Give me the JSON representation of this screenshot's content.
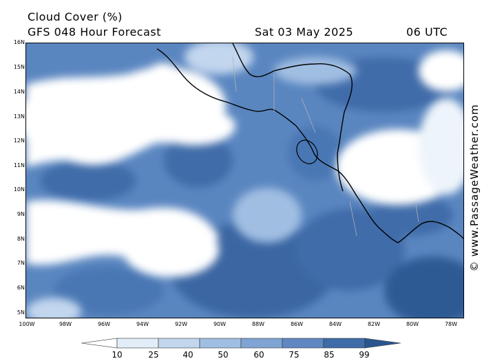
{
  "header": {
    "product": "Cloud Cover (%)",
    "forecast": "GFS 048 Hour Forecast",
    "date": "Sat 03 May 2025",
    "time": "06 UTC"
  },
  "credit": "© www.PassageWeather.com",
  "axes": {
    "lat_labels": [
      "16N",
      "15N",
      "14N",
      "13N",
      "12N",
      "11N",
      "10N",
      "9N",
      "8N",
      "7N",
      "6N",
      "5N"
    ],
    "lon_labels": [
      "100W",
      "98W",
      "96W",
      "94W",
      "92W",
      "90W",
      "88W",
      "86W",
      "84W",
      "82W",
      "80W",
      "78W"
    ]
  },
  "legend": {
    "labels": [
      "10",
      "25",
      "40",
      "50",
      "60",
      "75",
      "85",
      "99"
    ],
    "colors": [
      "#ffffff",
      "#e2edf8",
      "#c2d6ee",
      "#a0bee2",
      "#7fa4d4",
      "#5f88c2",
      "#3f6ca9",
      "#2a558f"
    ]
  },
  "colors": {
    "ocean_base": "#5a86c0",
    "coastline": "#000000",
    "borders": "#b0b0b0"
  }
}
